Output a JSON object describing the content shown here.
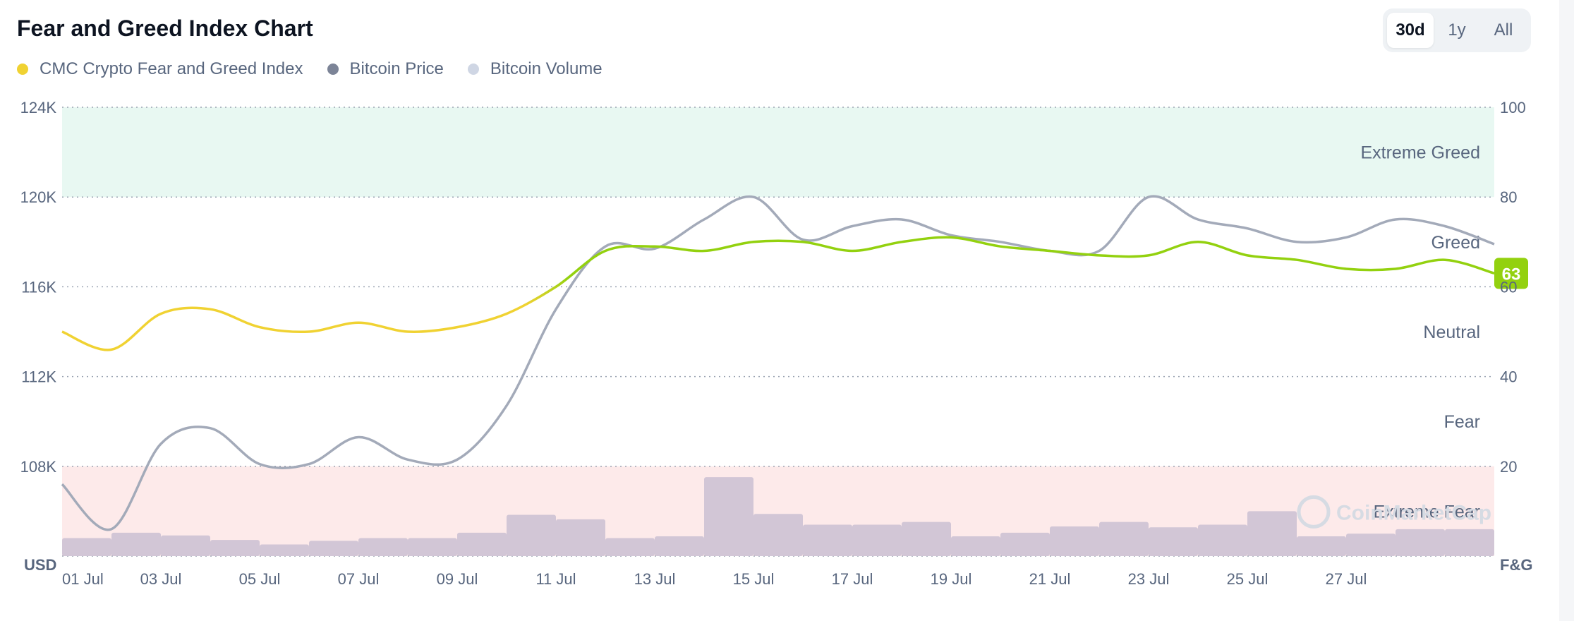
{
  "title": "Fear and Greed Index Chart",
  "ranges": [
    {
      "label": "30d",
      "active": true
    },
    {
      "label": "1y",
      "active": false
    },
    {
      "label": "All",
      "active": false
    }
  ],
  "legend": [
    {
      "label": "CMC Crypto Fear and Greed Index",
      "color": "#f0d232"
    },
    {
      "label": "Bitcoin Price",
      "color": "#7c8497"
    },
    {
      "label": "Bitcoin Volume",
      "color": "#cfd6e4"
    }
  ],
  "watermark": "CoinMarketCap",
  "chart_data": {
    "type": "line",
    "title": "Fear and Greed Index Chart",
    "left_axis": {
      "unit": "USD",
      "ticks": [
        "108K",
        "112K",
        "116K",
        "120K",
        "124K"
      ],
      "tick_values": [
        108000,
        112000,
        116000,
        120000,
        124000
      ],
      "range": [
        104000,
        124000
      ]
    },
    "right_axis": {
      "unit": "F&G",
      "ticks": [
        "20",
        "40",
        "60",
        "80",
        "100"
      ],
      "tick_values": [
        20,
        40,
        60,
        80,
        100
      ],
      "range": [
        0,
        100
      ]
    },
    "x_ticks": [
      "01 Jul",
      "03 Jul",
      "05 Jul",
      "07 Jul",
      "09 Jul",
      "11 Jul",
      "13 Jul",
      "15 Jul",
      "17 Jul",
      "19 Jul",
      "21 Jul",
      "23 Jul",
      "25 Jul",
      "27 Jul"
    ],
    "x_tick_days": [
      1,
      3,
      5,
      7,
      9,
      11,
      13,
      15,
      17,
      19,
      21,
      23,
      25,
      27
    ],
    "x_domain": [
      1,
      30
    ],
    "zones": [
      {
        "label": "Extreme Greed",
        "from": 80,
        "to": 100,
        "color": "#e8f8f2"
      },
      {
        "label": "Greed",
        "from": 60,
        "to": 80
      },
      {
        "label": "Neutral",
        "from": 40,
        "to": 60
      },
      {
        "label": "Fear",
        "from": 20,
        "to": 40
      },
      {
        "label": "Extreme Fear",
        "from": 0,
        "to": 20,
        "color": "#fdeaea"
      }
    ],
    "current_value_badge": "63",
    "series": [
      {
        "name": "CMC Crypto Fear and Greed Index",
        "axis": "right",
        "x": [
          1,
          2,
          3,
          4,
          5,
          6,
          7,
          8,
          9,
          10,
          11,
          12,
          13,
          14,
          15,
          16,
          17,
          18,
          19,
          20,
          21,
          22,
          23,
          24,
          25,
          26,
          27,
          28,
          29,
          30
        ],
        "values": [
          50,
          46,
          54,
          55,
          51,
          50,
          52,
          50,
          51,
          54,
          60,
          68,
          69,
          68,
          70,
          70,
          68,
          70,
          71,
          69,
          68,
          67,
          67,
          70,
          67,
          66,
          64,
          64,
          66,
          63
        ]
      },
      {
        "name": "Bitcoin Price",
        "axis": "left",
        "x": [
          1,
          2,
          3,
          4,
          5,
          6,
          7,
          8,
          9,
          10,
          11,
          12,
          13,
          14,
          15,
          16,
          17,
          18,
          19,
          20,
          21,
          22,
          23,
          24,
          25,
          26,
          27,
          28,
          29,
          30
        ],
        "values": [
          107200,
          105200,
          109000,
          109700,
          108100,
          108100,
          109300,
          108300,
          108300,
          110700,
          115000,
          117800,
          117700,
          119000,
          120000,
          118100,
          118700,
          119000,
          118300,
          118000,
          117600,
          117600,
          120000,
          119000,
          118600,
          118000,
          118200,
          119000,
          118700,
          117900
        ]
      },
      {
        "name": "Bitcoin Volume",
        "axis": "volume",
        "x": [
          1,
          2,
          3,
          4,
          5,
          6,
          7,
          8,
          9,
          10,
          11,
          12,
          13,
          14,
          15,
          16,
          17,
          18,
          19,
          20,
          21,
          22,
          23,
          24,
          25,
          26,
          27,
          28,
          29,
          30
        ],
        "values": [
          0.2,
          0.26,
          0.23,
          0.18,
          0.13,
          0.17,
          0.2,
          0.2,
          0.26,
          0.46,
          0.41,
          0.2,
          0.22,
          0.88,
          0.47,
          0.35,
          0.35,
          0.38,
          0.22,
          0.26,
          0.33,
          0.38,
          0.32,
          0.35,
          0.5,
          0.22,
          0.25,
          0.3,
          0.3,
          0.32
        ]
      }
    ]
  }
}
